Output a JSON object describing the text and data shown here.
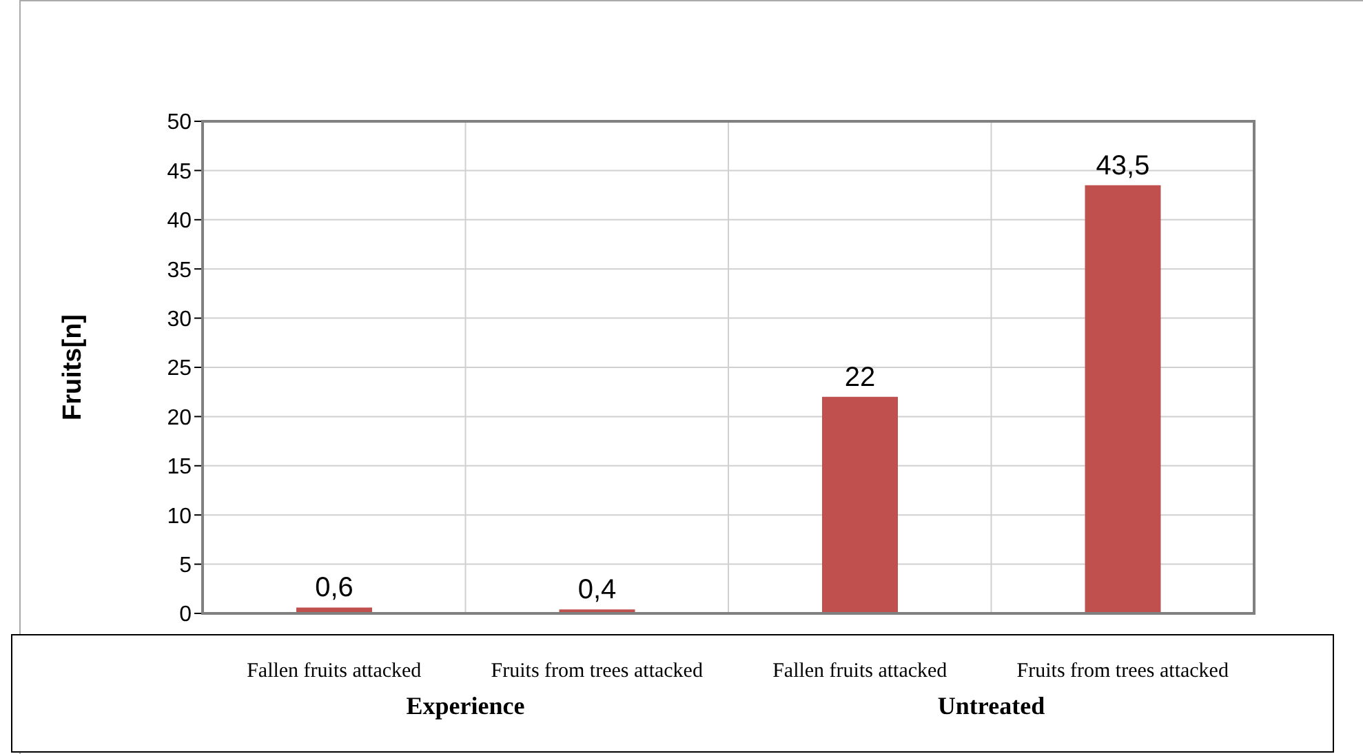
{
  "chart_data": {
    "type": "bar",
    "ylabel": "Fruits[n]",
    "categories": [
      "Fallen fruits attacked",
      "Fruits from trees attacked",
      "Fallen fruits attacked",
      "Fruits from trees attacked"
    ],
    "values": [
      0.6,
      0.4,
      22,
      43.5
    ],
    "color": "#c0504d",
    "value_labels": [
      "0,6",
      "0,4",
      "22",
      "43,5"
    ],
    "ylim": [
      0,
      50
    ],
    "yticks": [
      0,
      5,
      10,
      15,
      20,
      25,
      30,
      35,
      40,
      45,
      50
    ],
    "grid": true,
    "annotations": [
      "Experience",
      "Untreated"
    ]
  }
}
